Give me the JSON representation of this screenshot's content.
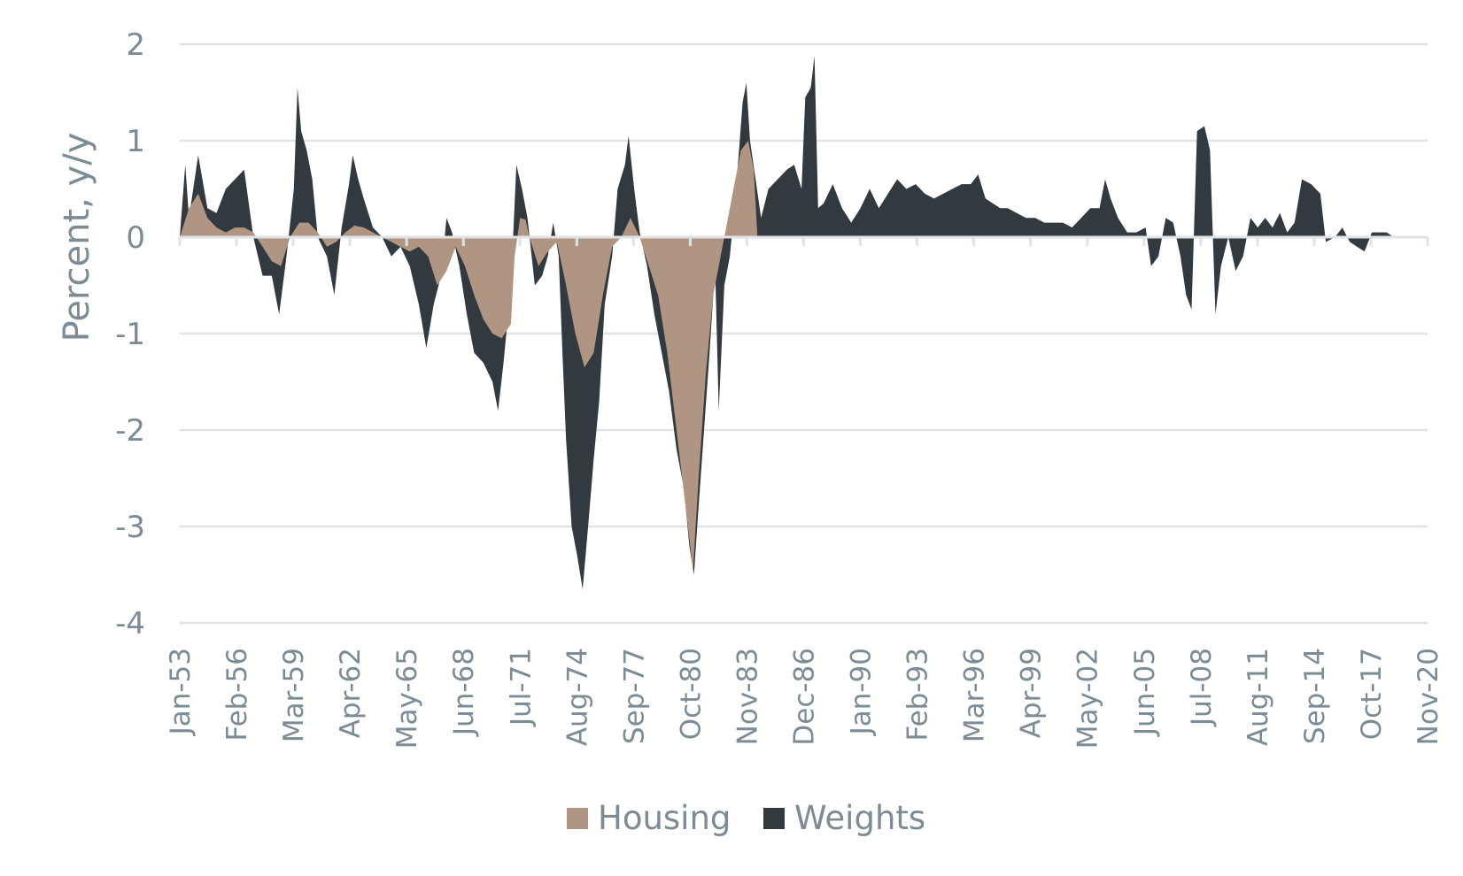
{
  "chart_data": {
    "type": "area",
    "ylabel": "Percent, y/y",
    "xlabel": "",
    "ylim": [
      -4,
      2
    ],
    "yticks": [
      "2",
      "1",
      "0",
      "-1",
      "-2",
      "-3",
      "-4"
    ],
    "grid": true,
    "legend_position": "bottom-center",
    "categories": [
      "Jan-53",
      "Feb-56",
      "Mar-59",
      "Apr-62",
      "May-65",
      "Jun-68",
      "Jul-71",
      "Aug-74",
      "Sep-77",
      "Oct-80",
      "Nov-83",
      "Dec-86",
      "Jan-90",
      "Feb-93",
      "Mar-96",
      "Apr-99",
      "May-02",
      "Jun-05",
      "Jul-08",
      "Aug-11",
      "Sep-14",
      "Oct-17",
      "Nov-20"
    ],
    "x_range": [
      1953.0,
      2020.83
    ],
    "series": [
      {
        "name": "Housing",
        "color": "#b09583",
        "points": [
          [
            1953.0,
            0
          ],
          [
            1953.5,
            0.3
          ],
          [
            1954.0,
            0.45
          ],
          [
            1954.5,
            0.2
          ],
          [
            1955.0,
            0.1
          ],
          [
            1955.5,
            0.05
          ],
          [
            1956.0,
            0.1
          ],
          [
            1956.5,
            0.1
          ],
          [
            1957.0,
            0.05
          ],
          [
            1957.5,
            -0.1
          ],
          [
            1958.0,
            -0.25
          ],
          [
            1958.5,
            -0.3
          ],
          [
            1959.0,
            0
          ],
          [
            1959.5,
            0.15
          ],
          [
            1960.0,
            0.15
          ],
          [
            1960.5,
            0.05
          ],
          [
            1961.0,
            -0.1
          ],
          [
            1961.5,
            -0.05
          ],
          [
            1962.0,
            0.05
          ],
          [
            1962.5,
            0.12
          ],
          [
            1963.0,
            0.1
          ],
          [
            1963.5,
            0.05
          ],
          [
            1964.0,
            0
          ],
          [
            1964.5,
            -0.05
          ],
          [
            1965.0,
            -0.1
          ],
          [
            1965.5,
            -0.15
          ],
          [
            1966.0,
            -0.1
          ],
          [
            1966.5,
            -0.2
          ],
          [
            1967.0,
            -0.5
          ],
          [
            1967.5,
            -0.35
          ],
          [
            1968.0,
            -0.1
          ],
          [
            1968.5,
            -0.3
          ],
          [
            1969.0,
            -0.6
          ],
          [
            1969.5,
            -0.85
          ],
          [
            1970.0,
            -1.0
          ],
          [
            1970.5,
            -1.05
          ],
          [
            1971.0,
            -0.9
          ],
          [
            1971.2,
            -0.2
          ],
          [
            1971.5,
            0.2
          ],
          [
            1971.8,
            0.18
          ],
          [
            1972.0,
            0
          ],
          [
            1972.5,
            -0.3
          ],
          [
            1973.0,
            -0.15
          ],
          [
            1973.5,
            -0.05
          ],
          [
            1974.0,
            -0.5
          ],
          [
            1974.5,
            -1.0
          ],
          [
            1975.0,
            -1.35
          ],
          [
            1975.5,
            -1.2
          ],
          [
            1976.0,
            -0.6
          ],
          [
            1976.5,
            -0.1
          ],
          [
            1977.0,
            0
          ],
          [
            1977.5,
            0.2
          ],
          [
            1978.0,
            0
          ],
          [
            1978.5,
            -0.3
          ],
          [
            1979.0,
            -0.6
          ],
          [
            1979.5,
            -1.2
          ],
          [
            1980.0,
            -2.0
          ],
          [
            1980.5,
            -2.8
          ],
          [
            1980.9,
            -3.45
          ],
          [
            1981.2,
            -2.5
          ],
          [
            1981.6,
            -1.4
          ],
          [
            1982.0,
            -0.6
          ],
          [
            1982.5,
            -0.1
          ],
          [
            1983.0,
            0.4
          ],
          [
            1983.5,
            0.9
          ],
          [
            1983.9,
            1.0
          ],
          [
            1984.2,
            0.7
          ],
          [
            1984.4,
            0
          ]
        ]
      },
      {
        "name": "Weights",
        "color": "#32393f",
        "points": [
          [
            1953.0,
            0
          ],
          [
            1953.3,
            0.75
          ],
          [
            1953.5,
            0.2
          ],
          [
            1954.0,
            0.85
          ],
          [
            1954.5,
            0.3
          ],
          [
            1955.0,
            0.25
          ],
          [
            1955.5,
            0.5
          ],
          [
            1956.0,
            0.6
          ],
          [
            1956.5,
            0.7
          ],
          [
            1957.0,
            0
          ],
          [
            1957.5,
            -0.4
          ],
          [
            1958.0,
            -0.4
          ],
          [
            1958.4,
            -0.8
          ],
          [
            1958.8,
            -0.2
          ],
          [
            1959.2,
            0.5
          ],
          [
            1959.4,
            1.55
          ],
          [
            1959.6,
            1.1
          ],
          [
            1959.9,
            0.9
          ],
          [
            1960.2,
            0.6
          ],
          [
            1960.5,
            0
          ],
          [
            1961.0,
            -0.2
          ],
          [
            1961.4,
            -0.6
          ],
          [
            1961.8,
            0.1
          ],
          [
            1962.2,
            0.55
          ],
          [
            1962.4,
            0.85
          ],
          [
            1962.7,
            0.6
          ],
          [
            1963.0,
            0.4
          ],
          [
            1963.5,
            0.1
          ],
          [
            1964.0,
            0
          ],
          [
            1964.5,
            -0.2
          ],
          [
            1965.0,
            -0.1
          ],
          [
            1965.5,
            -0.3
          ],
          [
            1966.0,
            -0.7
          ],
          [
            1966.4,
            -1.15
          ],
          [
            1966.8,
            -0.7
          ],
          [
            1967.2,
            -0.4
          ],
          [
            1967.5,
            0.2
          ],
          [
            1967.8,
            0.05
          ],
          [
            1968.2,
            -0.3
          ],
          [
            1968.6,
            -0.8
          ],
          [
            1969.0,
            -1.2
          ],
          [
            1969.5,
            -1.3
          ],
          [
            1970.0,
            -1.5
          ],
          [
            1970.3,
            -1.8
          ],
          [
            1970.6,
            -1.3
          ],
          [
            1971.0,
            -0.5
          ],
          [
            1971.3,
            0.75
          ],
          [
            1971.6,
            0.5
          ],
          [
            1971.9,
            0.2
          ],
          [
            1972.3,
            -0.5
          ],
          [
            1972.7,
            -0.4
          ],
          [
            1973.0,
            -0.2
          ],
          [
            1973.3,
            0.15
          ],
          [
            1973.6,
            -0.2
          ],
          [
            1973.8,
            -1.2
          ],
          [
            1974.0,
            -2.1
          ],
          [
            1974.3,
            -3.0
          ],
          [
            1974.6,
            -3.3
          ],
          [
            1974.9,
            -3.65
          ],
          [
            1975.2,
            -3.0
          ],
          [
            1975.5,
            -2.3
          ],
          [
            1975.8,
            -1.7
          ],
          [
            1976.1,
            -0.7
          ],
          [
            1976.5,
            -0.2
          ],
          [
            1976.8,
            0.5
          ],
          [
            1977.2,
            0.75
          ],
          [
            1977.4,
            1.05
          ],
          [
            1977.7,
            0.5
          ],
          [
            1978.0,
            0.05
          ],
          [
            1978.4,
            -0.3
          ],
          [
            1978.8,
            -0.8
          ],
          [
            1979.2,
            -1.2
          ],
          [
            1979.6,
            -1.6
          ],
          [
            1980.0,
            -2.2
          ],
          [
            1980.4,
            -2.6
          ],
          [
            1980.7,
            -3.2
          ],
          [
            1980.95,
            -3.5
          ],
          [
            1981.2,
            -2.8
          ],
          [
            1981.5,
            -2.0
          ],
          [
            1981.8,
            -1.2
          ],
          [
            1982.1,
            -0.3
          ],
          [
            1982.3,
            -1.8
          ],
          [
            1982.6,
            -0.5
          ],
          [
            1982.9,
            -0.2
          ],
          [
            1983.1,
            0.2
          ],
          [
            1983.4,
            0.9
          ],
          [
            1983.6,
            1.4
          ],
          [
            1983.8,
            1.6
          ],
          [
            1984.0,
            1.0
          ],
          [
            1984.3,
            0.6
          ],
          [
            1984.6,
            0.2
          ],
          [
            1985.0,
            0.5
          ],
          [
            1985.5,
            0.6
          ],
          [
            1986.0,
            0.7
          ],
          [
            1986.4,
            0.75
          ],
          [
            1986.8,
            0.5
          ],
          [
            1987.0,
            1.45
          ],
          [
            1987.3,
            1.55
          ],
          [
            1987.5,
            1.88
          ],
          [
            1987.7,
            0.3
          ],
          [
            1988.0,
            0.35
          ],
          [
            1988.5,
            0.55
          ],
          [
            1989.0,
            0.3
          ],
          [
            1989.5,
            0.15
          ],
          [
            1990.0,
            0.3
          ],
          [
            1990.5,
            0.5
          ],
          [
            1991.0,
            0.3
          ],
          [
            1991.5,
            0.45
          ],
          [
            1992.0,
            0.6
          ],
          [
            1992.5,
            0.5
          ],
          [
            1993.0,
            0.55
          ],
          [
            1993.5,
            0.45
          ],
          [
            1994.0,
            0.4
          ],
          [
            1994.5,
            0.45
          ],
          [
            1995.0,
            0.5
          ],
          [
            1995.5,
            0.55
          ],
          [
            1996.0,
            0.55
          ],
          [
            1996.4,
            0.65
          ],
          [
            1996.8,
            0.4
          ],
          [
            1997.2,
            0.35
          ],
          [
            1997.6,
            0.3
          ],
          [
            1998.0,
            0.3
          ],
          [
            1998.5,
            0.25
          ],
          [
            1999.0,
            0.2
          ],
          [
            1999.5,
            0.2
          ],
          [
            2000.0,
            0.15
          ],
          [
            2000.5,
            0.15
          ],
          [
            2001.0,
            0.15
          ],
          [
            2001.5,
            0.1
          ],
          [
            2002.0,
            0.2
          ],
          [
            2002.5,
            0.3
          ],
          [
            2003.0,
            0.3
          ],
          [
            2003.3,
            0.6
          ],
          [
            2003.6,
            0.4
          ],
          [
            2004.0,
            0.2
          ],
          [
            2004.5,
            0.05
          ],
          [
            2005.0,
            0.05
          ],
          [
            2005.5,
            0.1
          ],
          [
            2005.8,
            -0.3
          ],
          [
            2006.2,
            -0.2
          ],
          [
            2006.6,
            0.2
          ],
          [
            2007.0,
            0.15
          ],
          [
            2007.4,
            -0.2
          ],
          [
            2007.7,
            -0.6
          ],
          [
            2008.0,
            -0.75
          ],
          [
            2008.3,
            1.1
          ],
          [
            2008.7,
            1.15
          ],
          [
            2009.0,
            0.9
          ],
          [
            2009.3,
            -0.8
          ],
          [
            2009.6,
            -0.3
          ],
          [
            2010.0,
            0
          ],
          [
            2010.4,
            -0.35
          ],
          [
            2010.8,
            -0.2
          ],
          [
            2011.2,
            0.2
          ],
          [
            2011.6,
            0.1
          ],
          [
            2012.0,
            0.2
          ],
          [
            2012.4,
            0.1
          ],
          [
            2012.8,
            0.25
          ],
          [
            2013.2,
            0.05
          ],
          [
            2013.6,
            0.15
          ],
          [
            2014.0,
            0.6
          ],
          [
            2014.5,
            0.55
          ],
          [
            2015.0,
            0.45
          ],
          [
            2015.3,
            -0.05
          ],
          [
            2015.8,
            0
          ],
          [
            2016.2,
            0.1
          ],
          [
            2016.6,
            -0.05
          ],
          [
            2017.0,
            -0.1
          ],
          [
            2017.4,
            -0.15
          ],
          [
            2017.8,
            0.05
          ],
          [
            2018.2,
            0.05
          ],
          [
            2018.6,
            0.05
          ],
          [
            2019.0,
            0
          ]
        ]
      }
    ]
  }
}
